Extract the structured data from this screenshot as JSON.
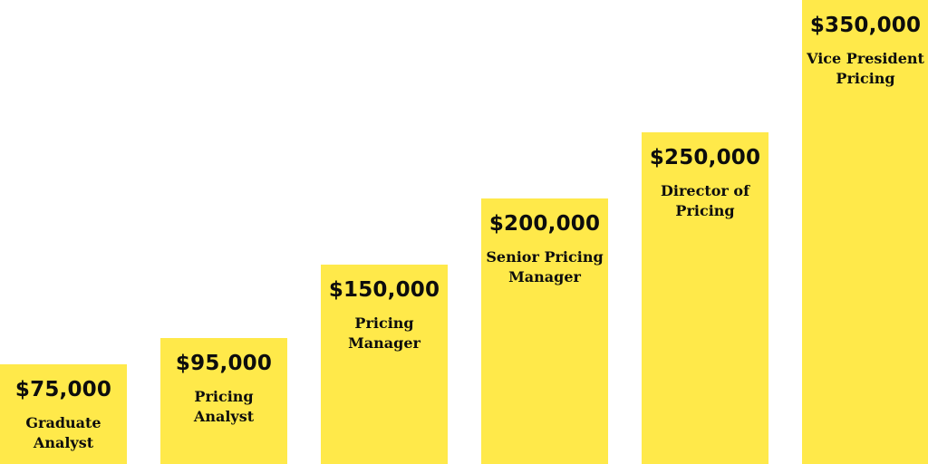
{
  "chart_data": {
    "type": "bar",
    "title": "",
    "xlabel": "",
    "ylabel": "",
    "ylim": [
      0,
      350000
    ],
    "grid": false,
    "legend": "none",
    "bar_color": "#ffe94a",
    "text_color": "#0d0d0d",
    "categories": [
      "Graduate Analyst",
      "Pricing Analyst",
      "Pricing Manager",
      "Senior Pricing Manager",
      "Director of Pricing",
      "Vice President Pricing"
    ],
    "values": [
      75000,
      95000,
      150000,
      200000,
      250000,
      350000
    ],
    "value_labels": [
      "$75,000",
      "$95,000",
      "$150,000",
      "$200,000",
      "$250,000",
      "$350,000"
    ],
    "labels": [
      "Graduate Analyst",
      "Pricing Analyst",
      "Pricing Manager",
      "Senior Pricing Manager",
      "Director of Pricing",
      "Vice President Pricing"
    ]
  }
}
